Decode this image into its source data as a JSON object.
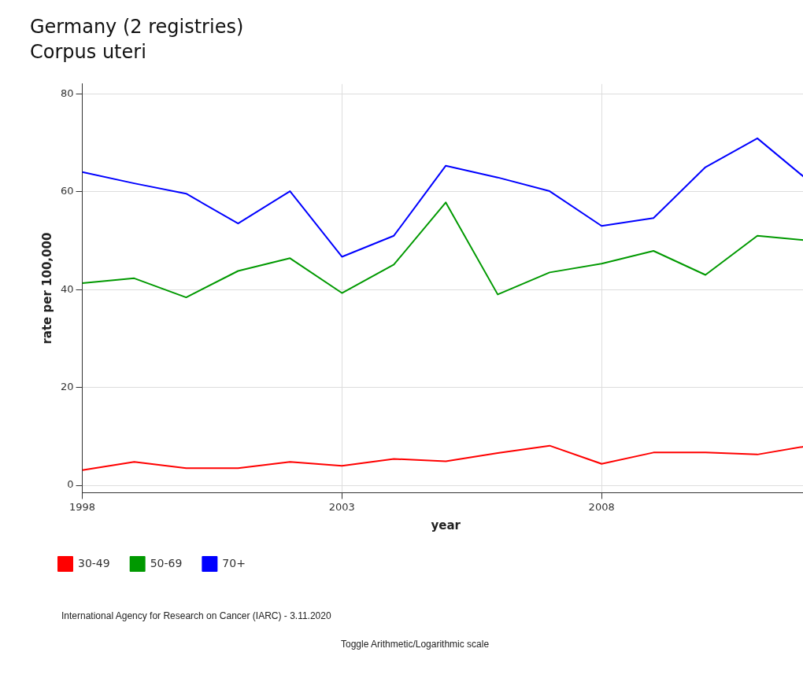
{
  "chart_data": {
    "type": "line",
    "title": "Germany (2 registries)",
    "subtitle": "Corpus uteri",
    "xlabel": "year",
    "ylabel": "rate per 100,000",
    "x": [
      1998,
      1999,
      2000,
      2001,
      2002,
      2003,
      2004,
      2005,
      2006,
      2007,
      2008,
      2009,
      2010,
      2011,
      2012
    ],
    "series": [
      {
        "name": "30-49",
        "color": "#ff0000",
        "values": [
          3.1,
          4.8,
          3.5,
          3.5,
          4.8,
          4.0,
          5.4,
          4.9,
          6.6,
          8.1,
          4.4,
          6.7,
          6.7,
          6.3,
          8.1
        ]
      },
      {
        "name": "50-69",
        "color": "#009900",
        "values": [
          41.3,
          42.3,
          38.4,
          43.8,
          46.4,
          39.3,
          45.1,
          57.8,
          39.0,
          43.5,
          45.3,
          47.9,
          43.0,
          51.0,
          50.0
        ]
      },
      {
        "name": "70+",
        "color": "#0000ff",
        "values": [
          64.0,
          61.7,
          59.6,
          53.5,
          60.1,
          46.7,
          51.0,
          65.3,
          62.9,
          60.1,
          53.0,
          54.6,
          65.0,
          70.9,
          62.1
        ]
      }
    ],
    "xlim": [
      1998,
      2012
    ],
    "xticks": [
      1998,
      2003,
      2008
    ],
    "ylim": [
      -1.5,
      82
    ],
    "yticks": [
      0,
      20,
      40,
      60,
      80
    ],
    "grid": true,
    "legend": "bottom left",
    "marker": "none",
    "line_style": "solid",
    "annotations": [
      "International Agency for Research on Cancer (IARC) - 3.11.2020",
      "Toggle Arithmetic/Logarithmic scale"
    ]
  }
}
